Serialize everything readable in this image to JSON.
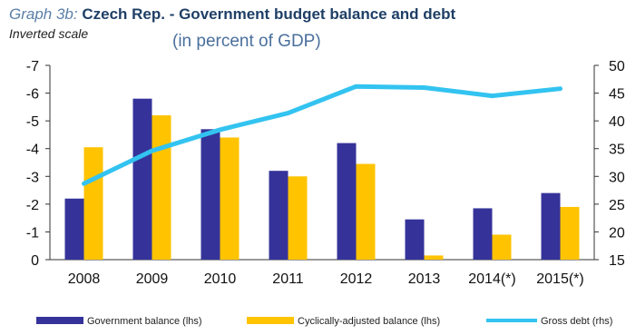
{
  "title": {
    "prefix": "Graph 3b:",
    "main": "Czech Rep. - Government budget balance and debt"
  },
  "subtitle_left": "Inverted scale",
  "subtitle_center": "(in percent of GDP)",
  "colors": {
    "government_balance": "#35339a",
    "cyclically_adjusted": "#ffc300",
    "gross_debt": "#33c3f0"
  },
  "chart_data": {
    "type": "bar",
    "categories": [
      "2008",
      "2009",
      "2010",
      "2011",
      "2012",
      "2013",
      "2014(*)",
      "2015(*)"
    ],
    "series": [
      {
        "name": "Government balance (lhs)",
        "type": "bar",
        "axis": "left",
        "values": [
          -2.2,
          -5.8,
          -4.7,
          -3.2,
          -4.2,
          -1.45,
          -1.85,
          -2.4
        ]
      },
      {
        "name": "Cyclically-adjusted balance (lhs)",
        "type": "bar",
        "axis": "left",
        "values": [
          -4.05,
          -5.2,
          -4.4,
          -3.0,
          -3.45,
          -0.15,
          -0.9,
          -1.9
        ]
      },
      {
        "name": "Gross debt (rhs)",
        "type": "line",
        "axis": "right",
        "values": [
          28.7,
          34.6,
          38.4,
          41.4,
          46.2,
          46.0,
          44.5,
          45.8
        ]
      }
    ],
    "y_left": {
      "range": [
        0,
        -7
      ],
      "inverted": true,
      "ticks": [
        "-7",
        "-6",
        "-5",
        "-4",
        "-3",
        "-2",
        "-1",
        "0"
      ]
    },
    "y_right": {
      "range": [
        15,
        50
      ],
      "ticks": [
        "50",
        "45",
        "40",
        "35",
        "30",
        "25",
        "20",
        "15"
      ]
    },
    "grid": false,
    "legend": "bottom",
    "legend_entries": [
      "Government balance (lhs)",
      "Cyclically-adjusted balance (lhs)",
      "Gross debt (rhs)"
    ]
  }
}
